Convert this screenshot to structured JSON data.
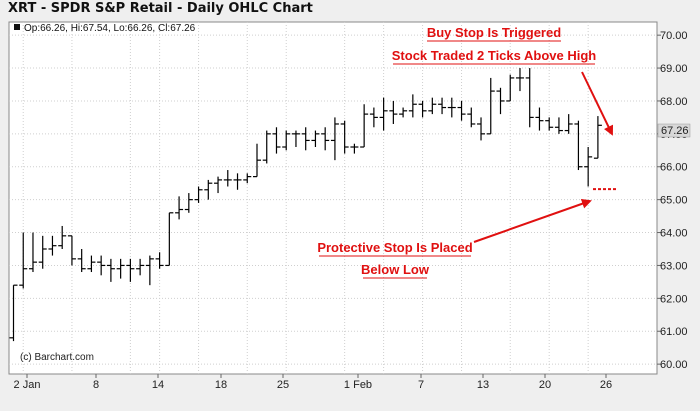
{
  "header": {
    "title": "XRT - SPDR S&P Retail - Daily OHLC Chart"
  },
  "info_bar": {
    "text": "Op:66.26, Hi:67.54, Lo:66.26, Cl:67.26"
  },
  "credit": "(c) Barchart.com",
  "colors": {
    "background": "#efefef",
    "plot_background": "#ffffff",
    "grid": "#c8c8c8",
    "bars": "#000000",
    "annotation": "#e01010",
    "last_price_badge": "#d8d8d8"
  },
  "chart_data": {
    "type": "ohlc",
    "title": "XRT - SPDR S&P Retail - Daily OHLC Chart",
    "ylim": [
      59.7,
      70.4
    ],
    "y_ticks": [
      "60.00",
      "61.00",
      "62.00",
      "63.00",
      "64.00",
      "65.00",
      "66.00",
      "67.00",
      "68.00",
      "69.00",
      "70.00"
    ],
    "x_tick_labels": [
      "2 Jan",
      "8",
      "14",
      "18",
      "25",
      "1 Feb",
      "7",
      "13",
      "20",
      "26"
    ],
    "y_axis_side": "right",
    "grid": true,
    "last_price": "67.26",
    "bars": [
      {
        "date": "Dec 31",
        "open": 60.8,
        "high": 62.4,
        "low": 60.7,
        "close": 62.4
      },
      {
        "date": "Jan 2",
        "open": 62.4,
        "high": 64.0,
        "low": 62.3,
        "close": 62.9
      },
      {
        "date": "Jan 3",
        "open": 62.9,
        "high": 64.0,
        "low": 62.8,
        "close": 63.1
      },
      {
        "date": "Jan 4",
        "open": 63.1,
        "high": 63.9,
        "low": 62.9,
        "close": 63.5
      },
      {
        "date": "Jan 7",
        "open": 63.5,
        "high": 63.9,
        "low": 63.3,
        "close": 63.6
      },
      {
        "date": "Jan 8",
        "open": 63.6,
        "high": 64.2,
        "low": 63.5,
        "close": 63.9
      },
      {
        "date": "Jan 9",
        "open": 63.9,
        "high": 63.9,
        "low": 63.0,
        "close": 63.2
      },
      {
        "date": "Jan 10",
        "open": 63.2,
        "high": 63.5,
        "low": 62.8,
        "close": 62.9
      },
      {
        "date": "Jan 11",
        "open": 62.9,
        "high": 63.3,
        "low": 62.8,
        "close": 63.1
      },
      {
        "date": "Jan 14",
        "open": 63.1,
        "high": 63.3,
        "low": 62.7,
        "close": 63.0
      },
      {
        "date": "Jan 15",
        "open": 63.0,
        "high": 63.2,
        "low": 62.5,
        "close": 62.9
      },
      {
        "date": "Jan 16",
        "open": 62.9,
        "high": 63.2,
        "low": 62.6,
        "close": 63.0
      },
      {
        "date": "Jan 17",
        "open": 63.0,
        "high": 63.2,
        "low": 62.5,
        "close": 62.9
      },
      {
        "date": "Jan 18",
        "open": 62.9,
        "high": 63.2,
        "low": 62.7,
        "close": 63.0
      },
      {
        "date": "Jan 22",
        "open": 63.0,
        "high": 63.3,
        "low": 62.4,
        "close": 63.2
      },
      {
        "date": "Jan 23",
        "open": 63.2,
        "high": 63.4,
        "low": 62.9,
        "close": 63.0
      },
      {
        "date": "Jan 24",
        "open": 63.0,
        "high": 64.6,
        "low": 63.0,
        "close": 64.6
      },
      {
        "date": "Jan 25",
        "open": 64.6,
        "high": 65.1,
        "low": 64.4,
        "close": 64.7
      },
      {
        "date": "Jan 28",
        "open": 64.7,
        "high": 65.2,
        "low": 64.6,
        "close": 65.0
      },
      {
        "date": "Jan 29",
        "open": 65.0,
        "high": 65.4,
        "low": 64.9,
        "close": 65.3
      },
      {
        "date": "Jan 30",
        "open": 65.3,
        "high": 65.6,
        "low": 65.0,
        "close": 65.5
      },
      {
        "date": "Jan 31",
        "open": 65.5,
        "high": 65.7,
        "low": 65.2,
        "close": 65.6
      },
      {
        "date": "Feb 1",
        "open": 65.6,
        "high": 65.9,
        "low": 65.4,
        "close": 65.6
      },
      {
        "date": "Feb 4",
        "open": 65.6,
        "high": 65.8,
        "low": 65.3,
        "close": 65.6
      },
      {
        "date": "Feb 5",
        "open": 65.6,
        "high": 65.8,
        "low": 65.5,
        "close": 65.7
      },
      {
        "date": "Feb 6",
        "open": 65.7,
        "high": 66.7,
        "low": 65.7,
        "close": 66.2
      },
      {
        "date": "Feb 7",
        "open": 66.2,
        "high": 67.1,
        "low": 66.1,
        "close": 67.0
      },
      {
        "date": "Feb 8",
        "open": 67.0,
        "high": 67.2,
        "low": 66.4,
        "close": 66.6
      },
      {
        "date": "Feb 11",
        "open": 66.6,
        "high": 67.1,
        "low": 66.5,
        "close": 67.0
      },
      {
        "date": "Feb 12",
        "open": 67.0,
        "high": 67.1,
        "low": 66.6,
        "close": 67.0
      },
      {
        "date": "Feb 13",
        "open": 67.0,
        "high": 67.2,
        "low": 66.5,
        "close": 66.8
      },
      {
        "date": "Feb 14",
        "open": 66.8,
        "high": 67.1,
        "low": 66.6,
        "close": 67.0
      },
      {
        "date": "Feb 15",
        "open": 67.0,
        "high": 67.2,
        "low": 66.5,
        "close": 66.8
      },
      {
        "date": "Feb 19",
        "open": 66.8,
        "high": 67.5,
        "low": 66.2,
        "close": 67.3
      },
      {
        "date": "Feb 20",
        "open": 67.3,
        "high": 67.4,
        "low": 66.4,
        "close": 66.6
      },
      {
        "date": "Feb 21",
        "open": 66.6,
        "high": 66.7,
        "low": 66.4,
        "close": 66.6
      },
      {
        "date": "Feb 22",
        "open": 66.6,
        "high": 67.9,
        "low": 66.6,
        "close": 67.6
      },
      {
        "date": "Feb 25",
        "open": 67.6,
        "high": 67.8,
        "low": 67.2,
        "close": 67.5
      },
      {
        "date": "Feb 26",
        "open": 67.5,
        "high": 68.1,
        "low": 67.1,
        "close": 67.7
      },
      {
        "date": "Feb 27",
        "open": 67.7,
        "high": 68.0,
        "low": 67.3,
        "close": 67.6
      },
      {
        "date": "Feb 28",
        "open": 67.6,
        "high": 67.8,
        "low": 67.5,
        "close": 67.7
      },
      {
        "date": "Mar 1",
        "open": 67.7,
        "high": 68.2,
        "low": 67.5,
        "close": 67.9
      },
      {
        "date": "Mar 4",
        "open": 67.9,
        "high": 68.0,
        "low": 67.5,
        "close": 67.7
      },
      {
        "date": "Mar 5",
        "open": 67.7,
        "high": 68.1,
        "low": 67.6,
        "close": 67.9
      },
      {
        "date": "Mar 6",
        "open": 67.9,
        "high": 68.1,
        "low": 67.6,
        "close": 67.8
      },
      {
        "date": "Mar 7",
        "open": 67.8,
        "high": 68.1,
        "low": 67.5,
        "close": 67.8
      },
      {
        "date": "Mar 8",
        "open": 67.8,
        "high": 68.0,
        "low": 67.4,
        "close": 67.6
      },
      {
        "date": "Mar 11",
        "open": 67.6,
        "high": 67.8,
        "low": 67.2,
        "close": 67.3
      },
      {
        "date": "Mar 12",
        "open": 67.3,
        "high": 67.5,
        "low": 66.8,
        "close": 67.0
      },
      {
        "date": "Mar 13",
        "open": 67.0,
        "high": 68.7,
        "low": 67.0,
        "close": 68.3
      },
      {
        "date": "Mar 14",
        "open": 68.3,
        "high": 68.4,
        "low": 67.6,
        "close": 68.0
      },
      {
        "date": "Mar 15",
        "open": 68.0,
        "high": 68.8,
        "low": 68.0,
        "close": 68.7
      },
      {
        "date": "Mar 18",
        "open": 68.7,
        "high": 69.0,
        "low": 68.3,
        "close": 68.7
      },
      {
        "date": "Mar 19",
        "open": 68.7,
        "high": 69.0,
        "low": 67.2,
        "close": 67.5
      },
      {
        "date": "Mar 20",
        "open": 67.5,
        "high": 67.8,
        "low": 67.1,
        "close": 67.4
      },
      {
        "date": "Mar 21",
        "open": 67.4,
        "high": 67.5,
        "low": 67.1,
        "close": 67.2
      },
      {
        "date": "Mar 22",
        "open": 67.2,
        "high": 67.5,
        "low": 67.0,
        "close": 67.1
      },
      {
        "date": "Mar 25",
        "open": 67.1,
        "high": 67.6,
        "low": 67.0,
        "close": 67.3
      },
      {
        "date": "Mar 26",
        "open": 67.3,
        "high": 67.4,
        "low": 65.9,
        "close": 66.0
      },
      {
        "date": "Mar 27",
        "open": 66.0,
        "high": 66.6,
        "low": 65.4,
        "close": 66.3
      },
      {
        "date": "Mar 28",
        "open": 66.26,
        "high": 67.54,
        "low": 66.26,
        "close": 67.26
      }
    ],
    "annotations": {
      "buy_stop": [
        "Buy Stop Is Triggered",
        "Stock Traded 2 Ticks Above High"
      ],
      "protective_stop": [
        "Protective Stop Is Placed",
        "Below Low"
      ],
      "protective_stop_level": 65.32
    }
  }
}
